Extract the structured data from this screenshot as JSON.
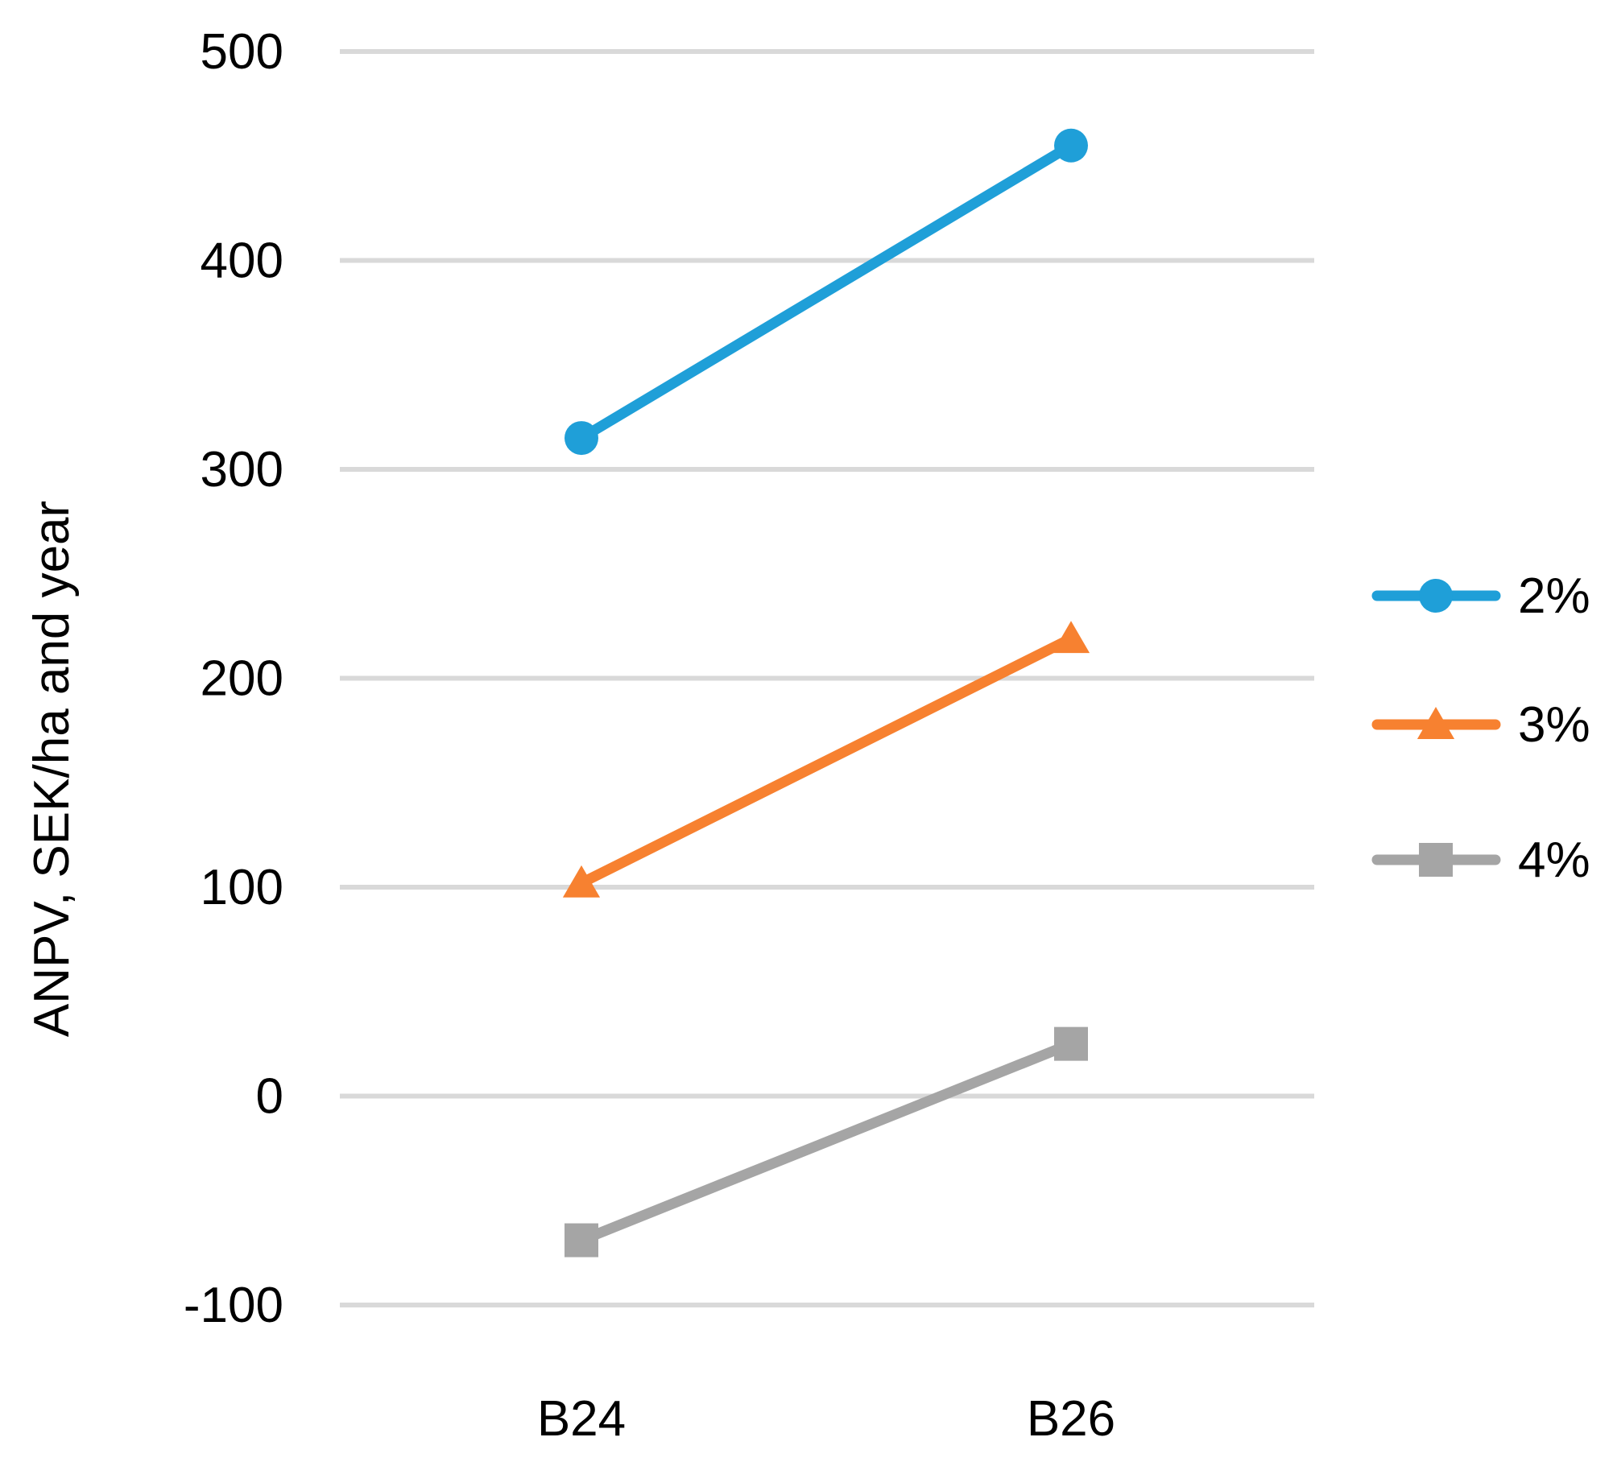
{
  "chart_data": {
    "type": "line",
    "title": "",
    "xlabel": "",
    "ylabel": "ANPV, SEK/ha and year",
    "categories": [
      "B24",
      "B26"
    ],
    "ylim": [
      -100,
      500
    ],
    "yticks": [
      -100,
      0,
      100,
      200,
      300,
      400,
      500
    ],
    "ytick_labels": [
      "-100",
      "0",
      "100",
      "200",
      "300",
      "400",
      "500"
    ],
    "grid": true,
    "legend_position": "right",
    "series": [
      {
        "name": "2%",
        "values": [
          315,
          455
        ],
        "color": "#1f9fd8",
        "marker": "circle"
      },
      {
        "name": "3%",
        "values": [
          102,
          219
        ],
        "color": "#f78130",
        "marker": "triangle"
      },
      {
        "name": "4%",
        "values": [
          -69,
          25
        ],
        "color": "#a5a5a5",
        "marker": "square"
      }
    ]
  }
}
